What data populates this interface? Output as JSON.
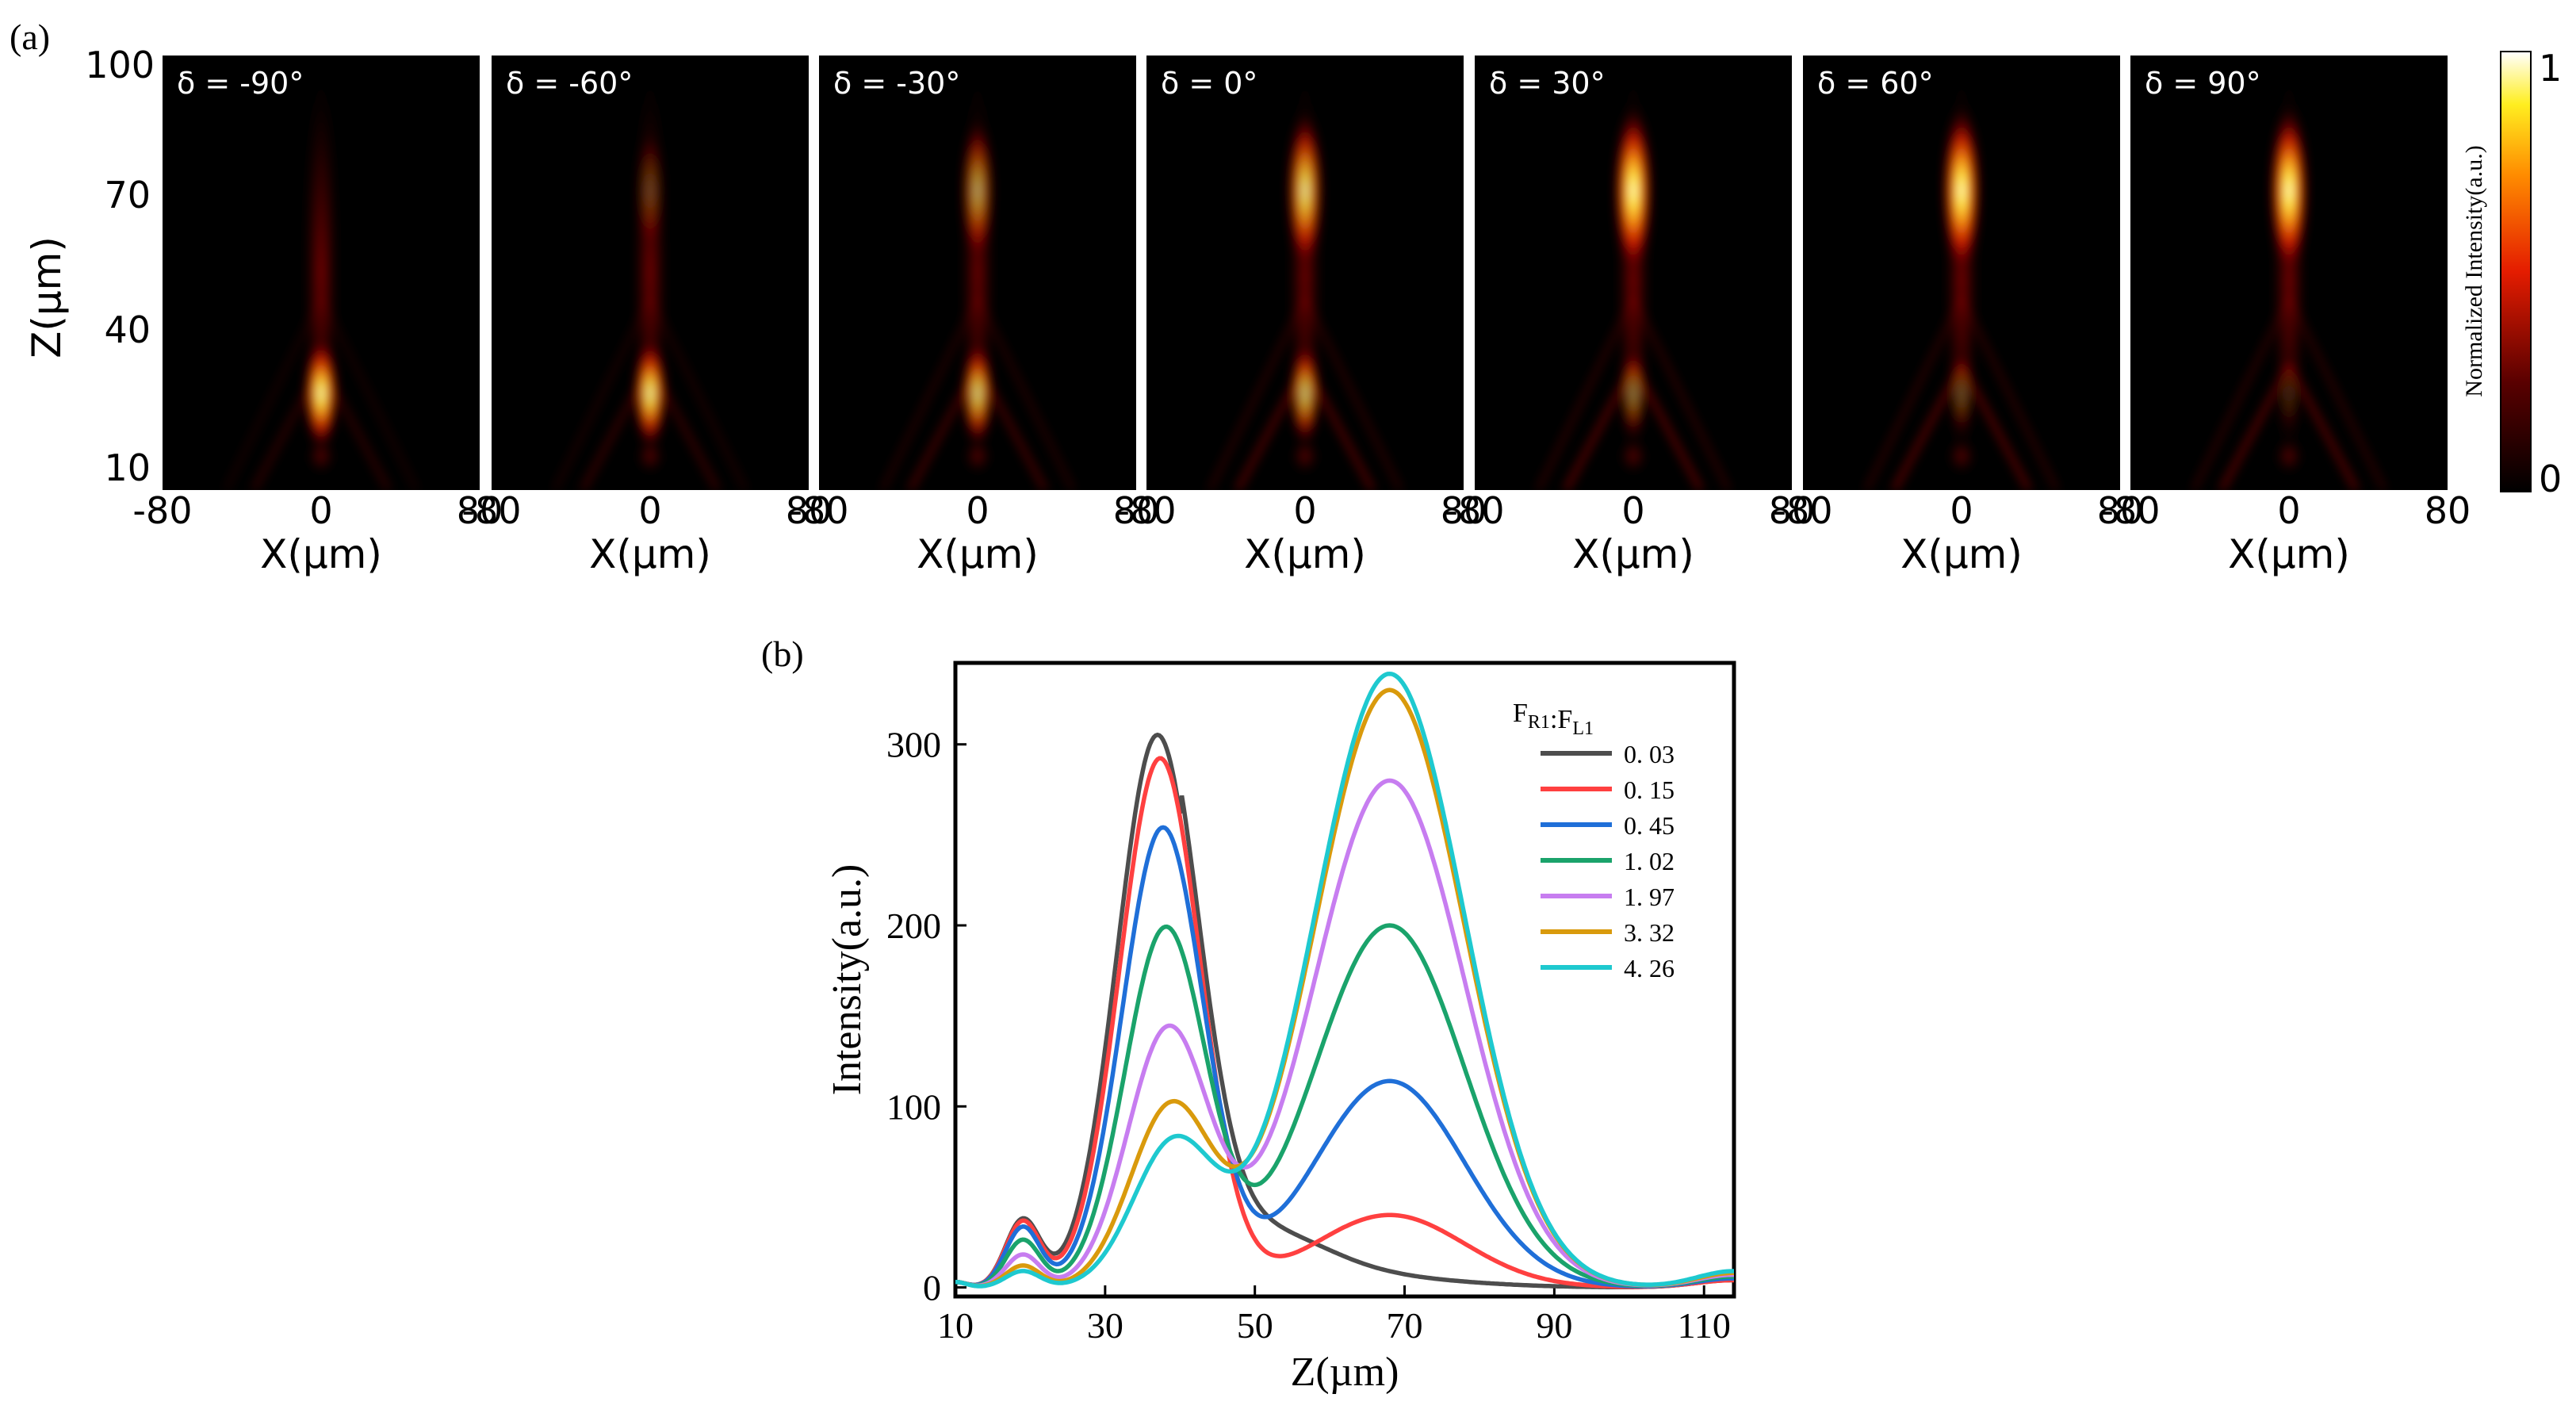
{
  "panel_a": {
    "label": "(a)",
    "z_axis_label": "Z(µm)",
    "x_axis_label": "X(µm)",
    "z_ticks": [
      "100",
      "70",
      "40",
      "10"
    ],
    "x_ticks": [
      "-80",
      "0",
      "80"
    ],
    "panels": [
      {
        "label": "δ = -90°",
        "delta": -90,
        "focus1": 0.95,
        "focus2": 0.05
      },
      {
        "label": "δ = -60°",
        "delta": -60,
        "focus1": 0.9,
        "focus2": 0.25
      },
      {
        "label": "δ = -30°",
        "delta": -30,
        "focus1": 0.78,
        "focus2": 0.6
      },
      {
        "label": "δ = 0°",
        "delta": 0,
        "focus1": 0.72,
        "focus2": 0.85
      },
      {
        "label": "δ = 30°",
        "delta": 30,
        "focus1": 0.45,
        "focus2": 1.0
      },
      {
        "label": "δ = 60°",
        "delta": 60,
        "focus1": 0.3,
        "focus2": 1.0
      },
      {
        "label": "δ = 90°",
        "delta": 90,
        "focus1": 0.15,
        "focus2": 1.0
      }
    ],
    "colorbar": {
      "label": "Normalized Intensity(a.u.)",
      "max_label": "1",
      "min_label": "0"
    }
  },
  "chart_data": {
    "type": "line",
    "panel_label": "(b)",
    "xlabel": "Z(µm)",
    "ylabel": "Intensity(a.u.)",
    "xlim": [
      10,
      114
    ],
    "ylim": [
      -5,
      345
    ],
    "xticks": [
      10,
      30,
      50,
      70,
      90,
      110
    ],
    "yticks": [
      0,
      100,
      200,
      300
    ],
    "legend_title_main1": "F",
    "legend_title_sub1": "R1",
    "legend_title_colon": ":",
    "legend_title_main2": "F",
    "legend_title_sub2": "L1",
    "legend_position": "top-right",
    "series": [
      {
        "name": "0. 03",
        "color": "#4d4d4d",
        "small_peak": 37,
        "peak1": 305,
        "peak2": 0,
        "tail": 4
      },
      {
        "name": "0. 15",
        "color": "#ff4040",
        "small_peak": 36,
        "peak1": 292,
        "peak2": 40,
        "tail": 4
      },
      {
        "name": "0. 45",
        "color": "#1f6fd8",
        "small_peak": 33,
        "peak1": 253,
        "peak2": 114,
        "tail": 5
      },
      {
        "name": "1. 02",
        "color": "#1aa36b",
        "small_peak": 26,
        "peak1": 197,
        "peak2": 200,
        "tail": 6
      },
      {
        "name": "1. 97",
        "color": "#c77df0",
        "small_peak": 18,
        "peak1": 141,
        "peak2": 280,
        "tail": 7
      },
      {
        "name": "3. 32",
        "color": "#d99a0c",
        "small_peak": 12,
        "peak1": 98,
        "peak2": 330,
        "tail": 8
      },
      {
        "name": "4. 26",
        "color": "#1ec9cf",
        "small_peak": 9,
        "peak1": 78,
        "peak2": 339,
        "tail": 9
      }
    ]
  }
}
